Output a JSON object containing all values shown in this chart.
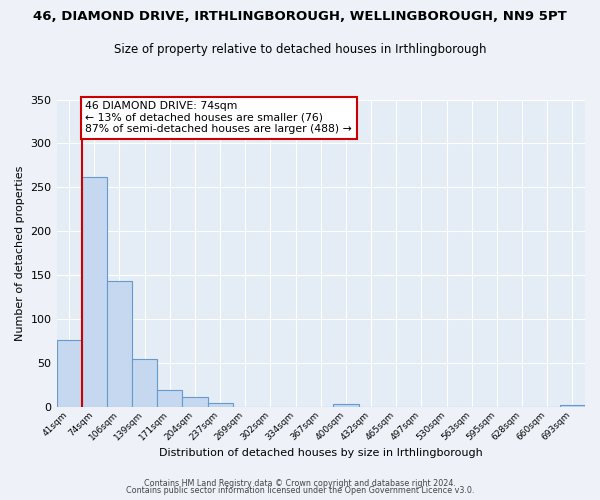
{
  "title": "46, DIAMOND DRIVE, IRTHLINGBOROUGH, WELLINGBOROUGH, NN9 5PT",
  "subtitle": "Size of property relative to detached houses in Irthlingborough",
  "xlabel": "Distribution of detached houses by size in Irthlingborough",
  "ylabel": "Number of detached properties",
  "bar_labels": [
    "41sqm",
    "74sqm",
    "106sqm",
    "139sqm",
    "171sqm",
    "204sqm",
    "237sqm",
    "269sqm",
    "302sqm",
    "334sqm",
    "367sqm",
    "400sqm",
    "432sqm",
    "465sqm",
    "497sqm",
    "530sqm",
    "563sqm",
    "595sqm",
    "628sqm",
    "660sqm",
    "693sqm"
  ],
  "bar_values": [
    76,
    262,
    143,
    55,
    20,
    11,
    5,
    0,
    0,
    0,
    0,
    3,
    0,
    0,
    0,
    0,
    0,
    0,
    0,
    0,
    2
  ],
  "bar_color": "#c5d8ef",
  "bar_edge_color": "#6699cc",
  "ylim": [
    0,
    350
  ],
  "yticks": [
    0,
    50,
    100,
    150,
    200,
    250,
    300,
    350
  ],
  "property_line_color": "#cc0000",
  "annotation_title": "46 DIAMOND DRIVE: 74sqm",
  "annotation_line1": "← 13% of detached houses are smaller (76)",
  "annotation_line2": "87% of semi-detached houses are larger (488) →",
  "annotation_box_color": "#cc0000",
  "footer1": "Contains HM Land Registry data © Crown copyright and database right 2024.",
  "footer2": "Contains public sector information licensed under the Open Government Licence v3.0.",
  "bg_color": "#eef2f8",
  "plot_bg_color": "#e4ecf6",
  "grid_color": "#ffffff"
}
